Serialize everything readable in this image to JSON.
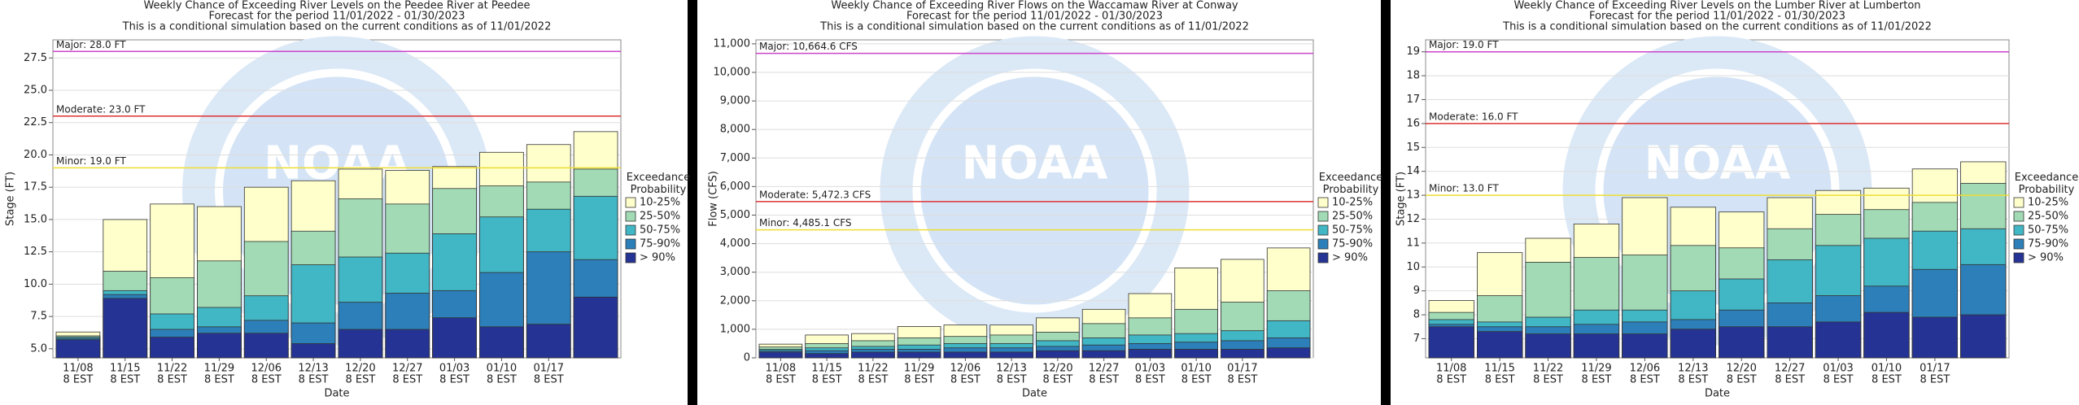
{
  "chart_data": [
    {
      "type": "bar",
      "title": "Weekly Chance of Exceeding River Levels on the Peedee River at Peedee",
      "subtitle": "Forecast for the period 11/01/2022 - 01/30/2023",
      "annotation": "This is a conditional simulation based on the current conditions as of 11/01/2022",
      "watermark": "NOAA",
      "ylabel": "Stage (FT)",
      "xlabel": "Date",
      "legend_title": "Exceedance Probability",
      "categories": [
        "11/08",
        "11/15",
        "11/22",
        "11/29",
        "12/06",
        "12/13",
        "12/20",
        "12/27",
        "01/03",
        "01/10",
        "01/17",
        null
      ],
      "category_sublabel": "8 EST",
      "ylim": [
        4.3,
        28.9
      ],
      "yticks": [
        {
          "value": 5,
          "label": "5.0"
        },
        7.5,
        {
          "value": 10,
          "label": "10.0"
        },
        12.5,
        {
          "value": 15,
          "label": "15.0"
        },
        17.5,
        {
          "value": 20,
          "label": "20.0"
        },
        22.5,
        {
          "value": 25,
          "label": "25.0"
        },
        27.5
      ],
      "grid": true,
      "thresholds": [
        {
          "label": "Major: 28.0 FT",
          "value": 28.0,
          "color": "#cc44cc"
        },
        {
          "label": "Moderate: 23.0 FT",
          "value": 23.0,
          "color": "#dd3333"
        },
        {
          "label": "Minor: 19.0 FT",
          "value": 19.0,
          "color": "#eedd33"
        }
      ],
      "series": [
        {
          "name": "10-25%",
          "color": "#ffffcc",
          "values": [
            6.3,
            15.0,
            16.2,
            16.0,
            17.5,
            18.0,
            18.9,
            18.8,
            19.1,
            20.2,
            20.8,
            21.8
          ]
        },
        {
          "name": "25-50%",
          "color": "#a1dab4",
          "values": [
            6.0,
            11.0,
            10.5,
            11.8,
            13.3,
            14.1,
            16.6,
            16.2,
            17.4,
            17.6,
            17.9,
            18.9
          ]
        },
        {
          "name": "50-75%",
          "color": "#41b6c4",
          "values": [
            5.9,
            9.5,
            7.7,
            8.2,
            9.1,
            11.5,
            12.1,
            12.4,
            13.9,
            15.2,
            15.8,
            16.8
          ]
        },
        {
          "name": "75-90%",
          "color": "#2c7fb8",
          "values": [
            5.8,
            9.2,
            6.5,
            6.7,
            7.2,
            7.0,
            8.6,
            9.3,
            9.5,
            10.9,
            12.5,
            11.9
          ]
        },
        {
          "name": "> 90%",
          "color": "#253494",
          "values": [
            5.7,
            8.9,
            5.9,
            6.2,
            6.2,
            5.4,
            6.5,
            6.5,
            7.4,
            6.7,
            6.9,
            9.0
          ]
        }
      ]
    },
    {
      "type": "bar",
      "title": "Weekly Chance of Exceeding River Flows on the Waccamaw River at Conway",
      "subtitle": "Forecast for the period 11/01/2022 - 01/30/2023",
      "annotation": "This is a conditional simulation based on the current conditions as of 11/01/2022",
      "watermark": "NOAA",
      "ylabel": "Flow (CFS)",
      "xlabel": "Date",
      "legend_title": "Exceedance Probability",
      "categories": [
        "11/08",
        "11/15",
        "11/22",
        "11/29",
        "12/06",
        "12/13",
        "12/20",
        "12/27",
        "01/03",
        "01/10",
        "01/17",
        null
      ],
      "category_sublabel": "8 EST",
      "ylim": [
        0,
        11140
      ],
      "yticks": [
        0,
        {
          "value": 1000,
          "label": "1,000"
        },
        {
          "value": 2000,
          "label": "2,000"
        },
        {
          "value": 3000,
          "label": "3,000"
        },
        {
          "value": 4000,
          "label": "4,000"
        },
        {
          "value": 5000,
          "label": "5,000"
        },
        {
          "value": 6000,
          "label": "6,000"
        },
        {
          "value": 7000,
          "label": "7,000"
        },
        {
          "value": 8000,
          "label": "8,000"
        },
        {
          "value": 9000,
          "label": "9,000"
        },
        {
          "value": 10000,
          "label": "10,000"
        },
        {
          "value": 11000,
          "label": "11,000"
        }
      ],
      "grid": true,
      "thresholds": [
        {
          "label": "Major: 10,664.6 CFS",
          "value": 10664.6,
          "color": "#cc44cc"
        },
        {
          "label": "Moderate: 5,472.3 CFS",
          "value": 5472.3,
          "color": "#dd3333"
        },
        {
          "label": "Minor: 4,485.1 CFS",
          "value": 4485.1,
          "color": "#eedd33"
        }
      ],
      "series": [
        {
          "name": "10-25%",
          "color": "#ffffcc",
          "values": [
            480,
            800,
            850,
            1100,
            1150,
            1150,
            1400,
            1700,
            2250,
            3150,
            3450,
            3850
          ]
        },
        {
          "name": "25-50%",
          "color": "#a1dab4",
          "values": [
            380,
            500,
            600,
            700,
            750,
            800,
            900,
            1200,
            1400,
            1700,
            1950,
            2350
          ]
        },
        {
          "name": "50-75%",
          "color": "#41b6c4",
          "values": [
            300,
            350,
            400,
            450,
            500,
            500,
            600,
            700,
            800,
            850,
            950,
            1300
          ]
        },
        {
          "name": "75-90%",
          "color": "#2c7fb8",
          "values": [
            250,
            250,
            300,
            300,
            350,
            350,
            400,
            450,
            500,
            550,
            600,
            700
          ]
        },
        {
          "name": "> 90%",
          "color": "#253494",
          "values": [
            200,
            150,
            200,
            200,
            200,
            200,
            250,
            250,
            300,
            300,
            300,
            350
          ]
        }
      ]
    },
    {
      "type": "bar",
      "title": "Weekly Chance of Exceeding River Levels on the Lumber River at Lumberton",
      "subtitle": "Forecast for the period 11/01/2022 - 01/30/2023",
      "annotation": "This is a conditional simulation based on the current conditions as of 11/01/2022",
      "watermark": "NOAA",
      "ylabel": "Stage (FT)",
      "xlabel": "Date",
      "legend_title": "Exceedance Probability",
      "categories": [
        "11/08",
        "11/15",
        "11/22",
        "11/29",
        "12/06",
        "12/13",
        "12/20",
        "12/27",
        "01/03",
        "01/10",
        "01/17",
        null
      ],
      "category_sublabel": "8 EST",
      "ylim": [
        6.2,
        19.5
      ],
      "yticks": [
        7,
        8,
        9,
        10,
        11,
        12,
        13,
        14,
        15,
        16,
        17,
        18,
        19
      ],
      "grid": true,
      "thresholds": [
        {
          "label": "Major: 19.0 FT",
          "value": 19.0,
          "color": "#cc44cc"
        },
        {
          "label": "Moderate: 16.0 FT",
          "value": 16.0,
          "color": "#dd3333"
        },
        {
          "label": "Minor: 13.0 FT",
          "value": 13.0,
          "color": "#eedd33"
        }
      ],
      "series": [
        {
          "name": "10-25%",
          "color": "#ffffcc",
          "values": [
            8.6,
            10.6,
            11.2,
            11.8,
            12.9,
            12.5,
            12.3,
            12.9,
            13.2,
            13.3,
            14.1,
            14.4
          ]
        },
        {
          "name": "25-50%",
          "color": "#a1dab4",
          "values": [
            8.1,
            8.8,
            10.2,
            10.4,
            10.5,
            10.9,
            10.8,
            11.6,
            12.2,
            12.4,
            12.7,
            13.5
          ]
        },
        {
          "name": "50-75%",
          "color": "#41b6c4",
          "values": [
            7.8,
            7.7,
            7.9,
            8.2,
            8.2,
            9.0,
            9.5,
            10.3,
            10.9,
            11.2,
            11.5,
            11.6
          ]
        },
        {
          "name": "75-90%",
          "color": "#2c7fb8",
          "values": [
            7.6,
            7.5,
            7.5,
            7.6,
            7.7,
            7.8,
            8.2,
            8.5,
            8.8,
            9.2,
            9.9,
            10.1
          ]
        },
        {
          "name": "> 90%",
          "color": "#253494",
          "values": [
            7.5,
            7.3,
            7.2,
            7.2,
            7.2,
            7.4,
            7.5,
            7.5,
            7.7,
            8.1,
            7.9,
            8.0
          ]
        }
      ]
    }
  ]
}
